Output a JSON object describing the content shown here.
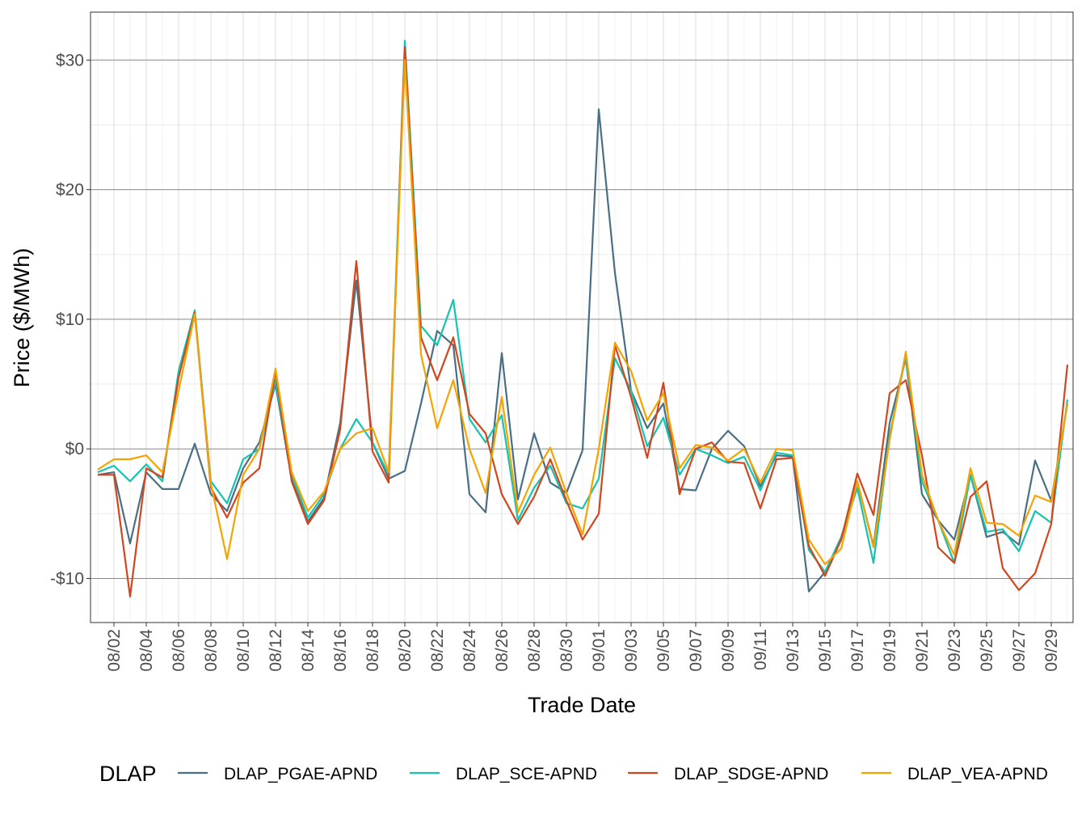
{
  "chart_data": {
    "type": "line",
    "title": "",
    "xlabel": "Trade Date",
    "ylabel": "Price ($/MWh)",
    "ylim": [
      -13.4,
      33.7
    ],
    "grid": true,
    "legend_placement": "bottom",
    "legend_title": "DLAP",
    "y_ticks": [
      -10,
      0,
      10,
      20,
      30
    ],
    "y_tick_labels": [
      "-$10",
      "$0",
      "$10",
      "$20",
      "$30"
    ],
    "x": [
      "08/01",
      "08/02",
      "08/03",
      "08/04",
      "08/05",
      "08/06",
      "08/07",
      "08/08",
      "08/09",
      "08/10",
      "08/11",
      "08/12",
      "08/13",
      "08/14",
      "08/15",
      "08/16",
      "08/17",
      "08/18",
      "08/19",
      "08/20",
      "08/21",
      "08/22",
      "08/23",
      "08/24",
      "08/25",
      "08/26",
      "08/27",
      "08/28",
      "08/29",
      "08/30",
      "08/31",
      "09/01",
      "09/02",
      "09/03",
      "09/04",
      "09/05",
      "09/06",
      "09/07",
      "09/08",
      "09/09",
      "09/10",
      "09/11",
      "09/12",
      "09/13",
      "09/14",
      "09/15",
      "09/16",
      "09/17",
      "09/18",
      "09/19",
      "09/20",
      "09/21",
      "09/22",
      "09/23",
      "09/24",
      "09/25",
      "09/26",
      "09/27",
      "09/28",
      "09/29",
      "09/30"
    ],
    "x_tick_labels": [
      "08/02",
      "08/04",
      "08/06",
      "08/08",
      "08/10",
      "08/12",
      "08/14",
      "08/16",
      "08/18",
      "08/20",
      "08/22",
      "08/24",
      "08/26",
      "08/28",
      "08/30",
      "09/01",
      "09/03",
      "09/05",
      "09/07",
      "09/09",
      "09/11",
      "09/13",
      "09/15",
      "09/17",
      "09/19",
      "09/21",
      "09/23",
      "09/25",
      "09/27",
      "09/29"
    ],
    "series": [
      {
        "name": "DLAP_PGAE-APND",
        "color": "#4a6f84",
        "values": [
          -2.0,
          -1.8,
          -7.3,
          -1.8,
          -3.1,
          -3.1,
          0.4,
          -3.5,
          -4.8,
          -1.5,
          0.5,
          5.0,
          -2.4,
          -5.6,
          -3.8,
          2.0,
          13.0,
          0.5,
          -2.3,
          -1.7,
          3.5,
          9.1,
          8.0,
          -3.5,
          -4.9,
          7.4,
          -3.9,
          1.2,
          -2.6,
          -3.4,
          -0.1,
          26.2,
          13.6,
          4.5,
          1.6,
          3.5,
          -3.1,
          -3.2,
          0.0,
          1.4,
          0.2,
          -2.9,
          -0.5,
          -0.6,
          -11.0,
          -9.5,
          -7.0,
          -2.5,
          -7.5,
          2.0,
          7.0,
          -3.5,
          -5.5,
          -7.0,
          -2.0,
          -6.8,
          -6.4,
          -7.4,
          -0.9,
          -4.0,
          3.5
        ]
      },
      {
        "name": "DLAP_SCE-APND",
        "color": "#14c3b0",
        "values": [
          -1.8,
          -1.3,
          -2.5,
          -1.2,
          -2.5,
          6.0,
          10.7,
          -2.5,
          -4.2,
          -0.8,
          0.0,
          5.3,
          -2.0,
          -5.3,
          -3.5,
          0.0,
          2.3,
          0.5,
          -2.0,
          31.5,
          9.5,
          8.0,
          11.5,
          2.3,
          0.5,
          2.6,
          -5.5,
          -3.0,
          -1.3,
          -4.2,
          -4.6,
          -2.3,
          7.0,
          4.5,
          0.2,
          2.4,
          -2.0,
          0.0,
          -0.5,
          -1.1,
          -0.6,
          -3.2,
          -0.3,
          -0.5,
          -7.8,
          -9.5,
          -6.8,
          -3.0,
          -8.8,
          1.0,
          7.2,
          -2.5,
          -5.5,
          -8.8,
          -2.0,
          -6.4,
          -6.2,
          -7.9,
          -4.8,
          -5.7,
          3.8
        ]
      },
      {
        "name": "DLAP_SDGE-APND",
        "color": "#d2461e",
        "values": [
          -2.0,
          -2.0,
          -11.4,
          -1.5,
          -2.2,
          5.5,
          10.5,
          -3.0,
          -5.3,
          -2.6,
          -1.5,
          6.0,
          -2.5,
          -5.8,
          -4.0,
          1.5,
          14.5,
          -0.2,
          -2.6,
          31.0,
          8.6,
          5.3,
          8.6,
          2.7,
          1.2,
          -3.5,
          -5.8,
          -3.7,
          -0.8,
          -4.0,
          -7.0,
          -5.0,
          8.0,
          4.0,
          -0.7,
          5.1,
          -3.5,
          0.0,
          0.5,
          -1.0,
          -1.1,
          -4.6,
          -0.8,
          -0.7,
          -7.5,
          -9.8,
          -7.0,
          -1.9,
          -5.1,
          4.3,
          5.3,
          -0.5,
          -7.6,
          -8.8,
          -3.7,
          -2.5,
          -9.2,
          -10.9,
          -9.6,
          -5.8,
          6.5
        ]
      },
      {
        "name": "DLAP_VEA-APND",
        "color": "#f5a300",
        "values": [
          -1.6,
          -0.8,
          -0.8,
          -0.5,
          -1.8,
          4.5,
          10.4,
          -2.7,
          -8.5,
          -2.0,
          0.0,
          6.2,
          -1.8,
          -4.8,
          -3.3,
          0.0,
          1.2,
          1.6,
          -1.8,
          30.0,
          7.3,
          1.6,
          5.3,
          0.0,
          -3.4,
          4.0,
          -4.9,
          -2.0,
          0.1,
          -3.4,
          -6.6,
          0.0,
          8.2,
          6.0,
          2.2,
          4.3,
          -1.5,
          0.3,
          0.1,
          -0.9,
          0.0,
          -2.6,
          0.0,
          -0.1,
          -7.0,
          -8.9,
          -7.7,
          -2.5,
          -7.6,
          0.7,
          7.5,
          -2.0,
          -5.5,
          -8.2,
          -1.5,
          -5.7,
          -5.8,
          -6.7,
          -3.6,
          -4.1,
          3.5
        ]
      }
    ]
  }
}
